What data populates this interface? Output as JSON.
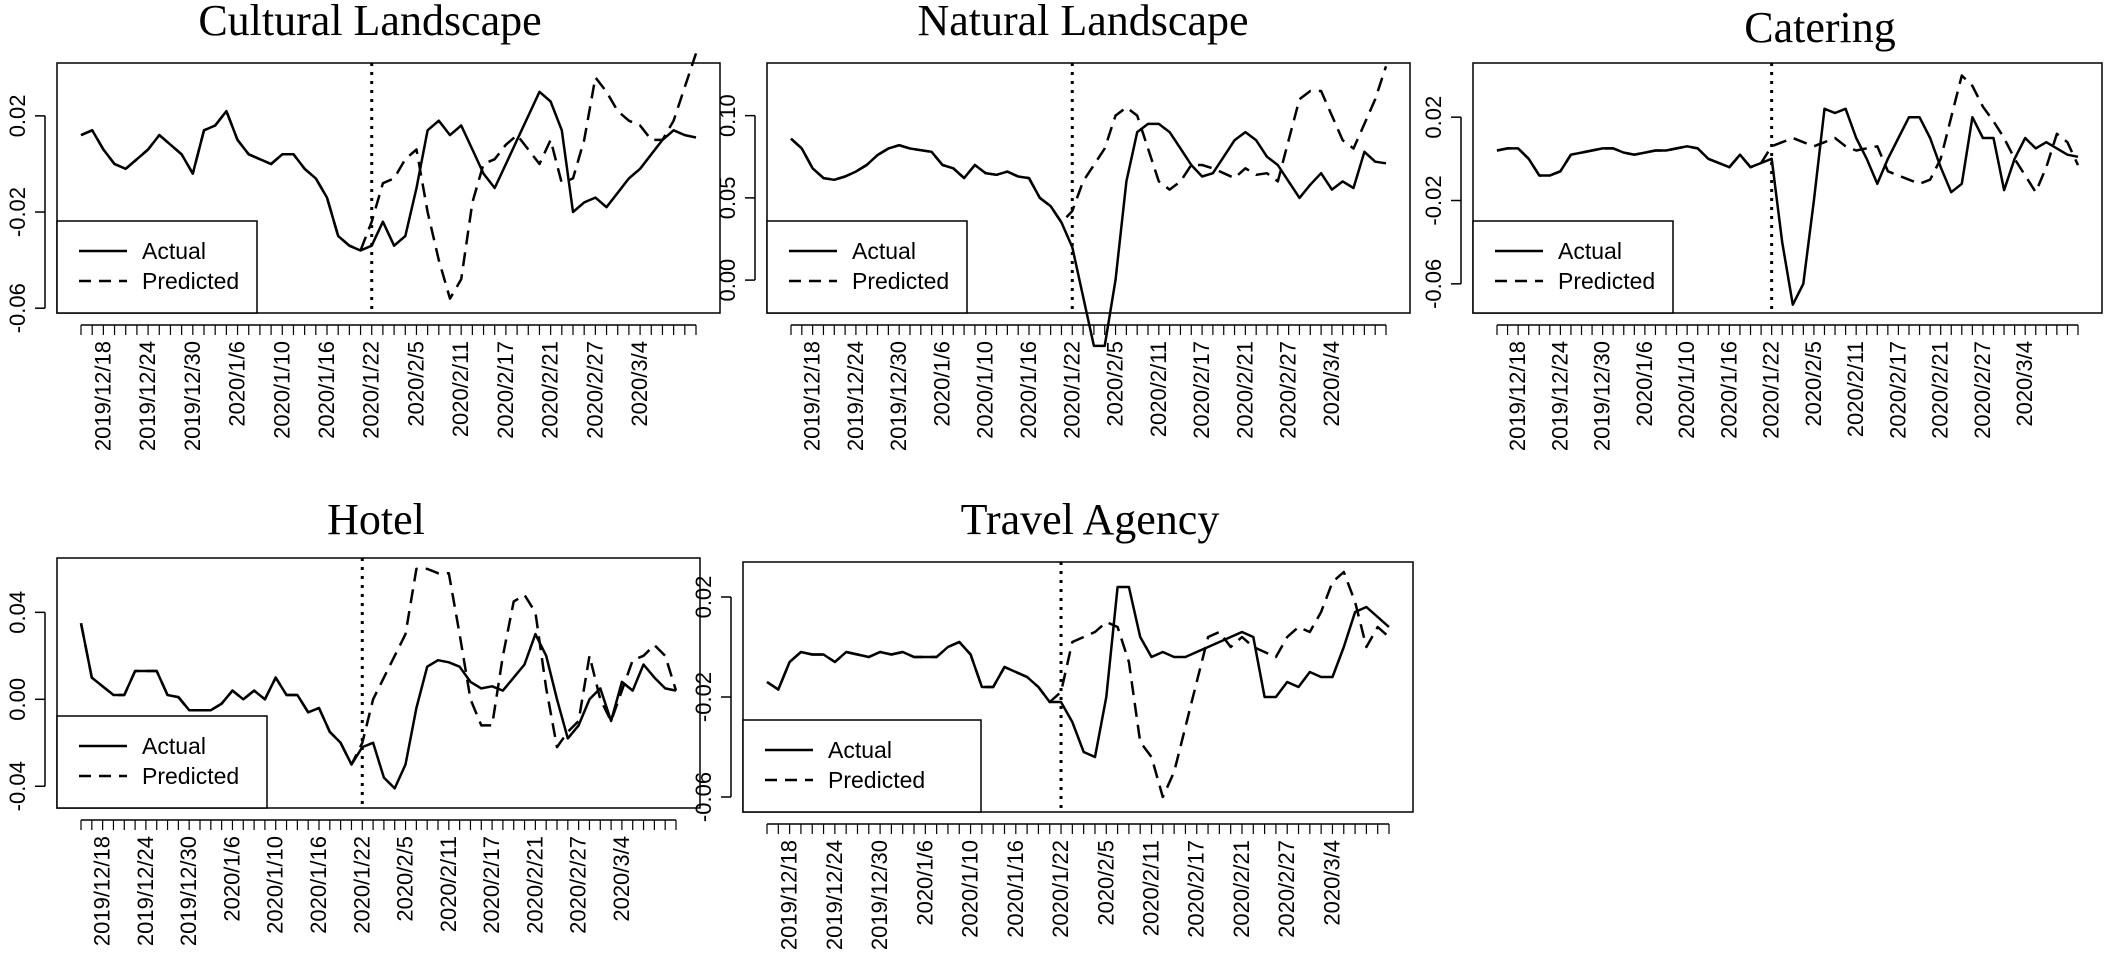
{
  "chart_data": [
    {
      "type": "line",
      "title": "Cultural Landscape",
      "ylim": [
        -0.062,
        0.042
      ],
      "yticks": [
        -0.06,
        -0.02,
        0.02
      ],
      "ytick_labels": [
        "-0.06",
        "-0.02",
        "0.02"
      ],
      "xtick_labels": [
        "2019/12/18",
        "2019/12/24",
        "2019/12/30",
        "2020/1/6",
        "2020/1/10",
        "2020/1/16",
        "2020/1/22",
        "2020/2/5",
        "2020/2/11",
        "2020/2/17",
        "2020/2/21",
        "2020/2/27",
        "2020/3/4"
      ],
      "x_count": 56,
      "event_index": 26,
      "legend": [
        "Actual",
        "Predicted"
      ],
      "legend_placement": "bottom-left",
      "series": [
        {
          "name": "Actual",
          "style": "solid",
          "values": [
            0.012,
            0.014,
            0.006,
            0.0,
            -0.002,
            0.002,
            0.006,
            0.012,
            0.008,
            0.004,
            -0.004,
            0.014,
            0.016,
            0.022,
            0.01,
            0.004,
            0.002,
            0.0,
            0.004,
            0.004,
            -0.002,
            -0.006,
            -0.014,
            -0.03,
            -0.034,
            -0.036,
            -0.034,
            -0.024,
            -0.034,
            -0.03,
            -0.01,
            0.014,
            0.018,
            0.012,
            0.016,
            0.006,
            -0.004,
            -0.01,
            0.0,
            0.01,
            0.02,
            0.03,
            0.026,
            0.014,
            -0.02,
            -0.016,
            -0.014,
            -0.018,
            -0.012,
            -0.006,
            -0.002,
            0.004,
            0.01,
            0.014,
            0.012,
            0.011
          ]
        },
        {
          "name": "Predicted",
          "style": "dashed",
          "values": [
            0.012,
            0.014,
            0.006,
            0.0,
            -0.002,
            0.002,
            0.006,
            0.012,
            0.008,
            0.004,
            -0.004,
            0.014,
            0.016,
            0.022,
            0.01,
            0.004,
            0.002,
            0.0,
            0.004,
            0.004,
            -0.002,
            -0.006,
            -0.014,
            -0.03,
            -0.034,
            -0.036,
            -0.024,
            -0.008,
            -0.006,
            0.002,
            0.006,
            -0.02,
            -0.04,
            -0.056,
            -0.048,
            -0.016,
            0.0,
            0.002,
            0.008,
            0.012,
            0.006,
            0.0,
            0.01,
            -0.008,
            -0.006,
            0.01,
            0.036,
            0.03,
            0.022,
            0.018,
            0.016,
            0.01,
            0.01,
            0.018,
            0.032,
            0.046
          ]
        }
      ]
    },
    {
      "type": "line",
      "title": "Natural Landscape",
      "ylim": [
        -0.02,
        0.132
      ],
      "yticks": [
        0.0,
        0.05,
        0.1
      ],
      "ytick_labels": [
        "0.00",
        "0.05",
        "0.10"
      ],
      "xtick_labels": [
        "2019/12/18",
        "2019/12/24",
        "2019/12/30",
        "2020/1/6",
        "2020/1/10",
        "2020/1/16",
        "2020/1/22",
        "2020/2/5",
        "2020/2/11",
        "2020/2/17",
        "2020/2/21",
        "2020/2/27",
        "2020/3/4"
      ],
      "x_count": 56,
      "event_index": 26,
      "legend": [
        "Actual",
        "Predicted"
      ],
      "legend_placement": "bottom-left",
      "series": [
        {
          "name": "Actual",
          "style": "solid",
          "values": [
            0.086,
            0.08,
            0.068,
            0.062,
            0.061,
            0.063,
            0.066,
            0.07,
            0.076,
            0.08,
            0.082,
            0.08,
            0.079,
            0.078,
            0.07,
            0.068,
            0.062,
            0.07,
            0.065,
            0.064,
            0.066,
            0.063,
            0.062,
            0.05,
            0.045,
            0.035,
            0.02,
            -0.01,
            -0.04,
            -0.04,
            0.0,
            0.06,
            0.09,
            0.095,
            0.095,
            0.09,
            0.08,
            0.07,
            0.063,
            0.065,
            0.075,
            0.085,
            0.09,
            0.085,
            0.075,
            0.07,
            0.06,
            0.05,
            0.058,
            0.065,
            0.055,
            0.06,
            0.056,
            0.078,
            0.072,
            0.071
          ]
        },
        {
          "name": "Predicted",
          "style": "dashed",
          "values": [
            0.086,
            0.08,
            0.068,
            0.062,
            0.061,
            0.063,
            0.066,
            0.07,
            0.076,
            0.08,
            0.082,
            0.08,
            0.079,
            0.078,
            0.07,
            0.068,
            0.062,
            0.07,
            0.065,
            0.064,
            0.066,
            0.063,
            0.062,
            0.05,
            0.045,
            0.035,
            0.042,
            0.06,
            0.07,
            0.08,
            0.1,
            0.105,
            0.1,
            0.08,
            0.06,
            0.055,
            0.06,
            0.07,
            0.07,
            0.068,
            0.065,
            0.062,
            0.068,
            0.064,
            0.065,
            0.06,
            0.085,
            0.11,
            0.115,
            0.115,
            0.1,
            0.085,
            0.08,
            0.095,
            0.11,
            0.13
          ]
        }
      ]
    },
    {
      "type": "line",
      "title": "Catering",
      "ylim": [
        -0.074,
        0.046
      ],
      "yticks": [
        -0.06,
        -0.02,
        0.02
      ],
      "ytick_labels": [
        "-0.06",
        "-0.02",
        "0.02"
      ],
      "xtick_labels": [
        "2019/12/18",
        "2019/12/24",
        "2019/12/30",
        "2020/1/6",
        "2020/1/10",
        "2020/1/16",
        "2020/1/22",
        "2020/2/5",
        "2020/2/11",
        "2020/2/17",
        "2020/2/21",
        "2020/2/27",
        "2020/3/4"
      ],
      "x_count": 56,
      "event_index": 26,
      "legend": [
        "Actual",
        "Predicted"
      ],
      "legend_placement": "bottom-left",
      "series": [
        {
          "name": "Actual",
          "style": "solid",
          "values": [
            0.004,
            0.005,
            0.005,
            0.0,
            -0.008,
            -0.008,
            -0.006,
            0.002,
            0.003,
            0.004,
            0.005,
            0.005,
            0.003,
            0.002,
            0.003,
            0.004,
            0.004,
            0.005,
            0.006,
            0.005,
            0.0,
            -0.002,
            -0.004,
            0.002,
            -0.004,
            -0.002,
            0.0,
            -0.04,
            -0.07,
            -0.06,
            -0.02,
            0.024,
            0.022,
            0.024,
            0.01,
            0.0,
            -0.012,
            0.0,
            0.01,
            0.02,
            0.02,
            0.01,
            -0.004,
            -0.016,
            -0.012,
            0.02,
            0.01,
            0.01,
            -0.015,
            0.0,
            0.01,
            0.005,
            0.008,
            0.005,
            0.002,
            0.001
          ]
        },
        {
          "name": "Predicted",
          "style": "dashed",
          "values": [
            0.004,
            0.005,
            0.005,
            0.0,
            -0.008,
            -0.008,
            -0.006,
            0.002,
            0.003,
            0.004,
            0.005,
            0.005,
            0.003,
            0.002,
            0.003,
            0.004,
            0.004,
            0.005,
            0.006,
            0.005,
            0.0,
            -0.002,
            -0.004,
            0.002,
            -0.004,
            -0.002,
            0.006,
            0.008,
            0.01,
            0.008,
            0.006,
            0.008,
            0.01,
            0.006,
            0.004,
            0.005,
            0.006,
            -0.006,
            -0.008,
            -0.01,
            -0.012,
            -0.01,
            0.0,
            0.02,
            0.04,
            0.035,
            0.025,
            0.018,
            0.01,
            0.0,
            -0.008,
            -0.016,
            -0.004,
            0.012,
            0.008,
            -0.003
          ]
        }
      ]
    },
    {
      "type": "line",
      "title": "Hotel",
      "ylim": [
        -0.05,
        0.065
      ],
      "yticks": [
        -0.04,
        0.0,
        0.04
      ],
      "ytick_labels": [
        "-0.04",
        "0.00",
        "0.04"
      ],
      "xtick_labels": [
        "2019/12/18",
        "2019/12/24",
        "2019/12/30",
        "2020/1/6",
        "2020/1/10",
        "2020/1/16",
        "2020/1/22",
        "2020/2/5",
        "2020/2/11",
        "2020/2/17",
        "2020/2/21",
        "2020/2/27",
        "2020/3/4"
      ],
      "x_count": 56,
      "event_index": 26,
      "legend": [
        "Actual",
        "Predicted"
      ],
      "legend_placement": "bottom-left",
      "series": [
        {
          "name": "Actual",
          "style": "solid",
          "values": [
            0.035,
            0.01,
            0.006,
            0.002,
            0.002,
            0.013,
            0.013,
            0.013,
            0.002,
            0.001,
            -0.005,
            -0.005,
            -0.005,
            -0.002,
            0.004,
            0.0,
            0.004,
            0.0,
            0.01,
            0.002,
            0.002,
            -0.006,
            -0.004,
            -0.015,
            -0.02,
            -0.03,
            -0.022,
            -0.02,
            -0.036,
            -0.041,
            -0.03,
            -0.004,
            0.015,
            0.018,
            0.017,
            0.015,
            0.008,
            0.005,
            0.006,
            0.004,
            0.01,
            0.016,
            0.03,
            0.02,
            0.0,
            -0.018,
            -0.012,
            0.0,
            0.005,
            -0.01,
            0.008,
            0.004,
            0.016,
            0.01,
            0.005,
            0.004
          ]
        },
        {
          "name": "Predicted",
          "style": "dashed",
          "values": [
            0.035,
            0.01,
            0.006,
            0.002,
            0.002,
            0.013,
            0.013,
            0.013,
            0.002,
            0.001,
            -0.005,
            -0.005,
            -0.005,
            -0.002,
            0.004,
            0.0,
            0.004,
            0.0,
            0.01,
            0.002,
            0.002,
            -0.006,
            -0.004,
            -0.015,
            -0.02,
            -0.03,
            -0.02,
            0.0,
            0.01,
            0.02,
            0.03,
            0.06,
            0.06,
            0.058,
            0.058,
            0.03,
            0.0,
            -0.012,
            -0.012,
            0.02,
            0.045,
            0.048,
            0.04,
            0.005,
            -0.022,
            -0.015,
            -0.01,
            0.02,
            0.0,
            -0.01,
            0.004,
            0.018,
            0.02,
            0.025,
            0.02,
            0.004
          ]
        }
      ]
    },
    {
      "type": "line",
      "title": "Travel Agency",
      "ylim": [
        -0.066,
        0.034
      ],
      "yticks": [
        -0.06,
        -0.02,
        0.02
      ],
      "ytick_labels": [
        "-0.06",
        "-0.02",
        "0.02"
      ],
      "xtick_labels": [
        "2019/12/18",
        "2019/12/24",
        "2019/12/30",
        "2020/1/6",
        "2020/1/10",
        "2020/1/16",
        "2020/1/22",
        "2020/2/5",
        "2020/2/11",
        "2020/2/17",
        "2020/2/21",
        "2020/2/27",
        "2020/3/4"
      ],
      "x_count": 56,
      "event_index": 26,
      "legend": [
        "Actual",
        "Predicted"
      ],
      "legend_placement": "bottom-left",
      "series": [
        {
          "name": "Actual",
          "style": "solid",
          "values": [
            -0.014,
            -0.017,
            -0.006,
            -0.002,
            -0.003,
            -0.003,
            -0.006,
            -0.002,
            -0.003,
            -0.004,
            -0.002,
            -0.003,
            -0.002,
            -0.004,
            -0.004,
            -0.004,
            0.0,
            0.002,
            -0.003,
            -0.016,
            -0.016,
            -0.008,
            -0.01,
            -0.012,
            -0.016,
            -0.022,
            -0.022,
            -0.03,
            -0.042,
            -0.044,
            -0.02,
            0.024,
            0.024,
            0.004,
            -0.004,
            -0.002,
            -0.004,
            -0.004,
            -0.002,
            0.0,
            0.002,
            0.004,
            0.006,
            0.004,
            -0.02,
            -0.02,
            -0.014,
            -0.016,
            -0.01,
            -0.012,
            -0.012,
            0.0,
            0.014,
            0.016,
            0.012,
            0.008
          ]
        },
        {
          "name": "Predicted",
          "style": "dashed",
          "values": [
            -0.014,
            -0.017,
            -0.006,
            -0.002,
            -0.003,
            -0.003,
            -0.006,
            -0.002,
            -0.003,
            -0.004,
            -0.002,
            -0.003,
            -0.002,
            -0.004,
            -0.004,
            -0.004,
            0.0,
            0.002,
            -0.003,
            -0.016,
            -0.016,
            -0.008,
            -0.01,
            -0.012,
            -0.016,
            -0.022,
            -0.018,
            0.002,
            0.004,
            0.006,
            0.01,
            0.008,
            -0.006,
            -0.038,
            -0.044,
            -0.06,
            -0.05,
            -0.032,
            -0.014,
            0.004,
            0.006,
            0.0,
            0.004,
            0.0,
            -0.002,
            -0.004,
            0.004,
            0.008,
            0.006,
            0.014,
            0.026,
            0.03,
            0.018,
            0.0,
            0.008,
            0.004
          ]
        }
      ]
    }
  ]
}
